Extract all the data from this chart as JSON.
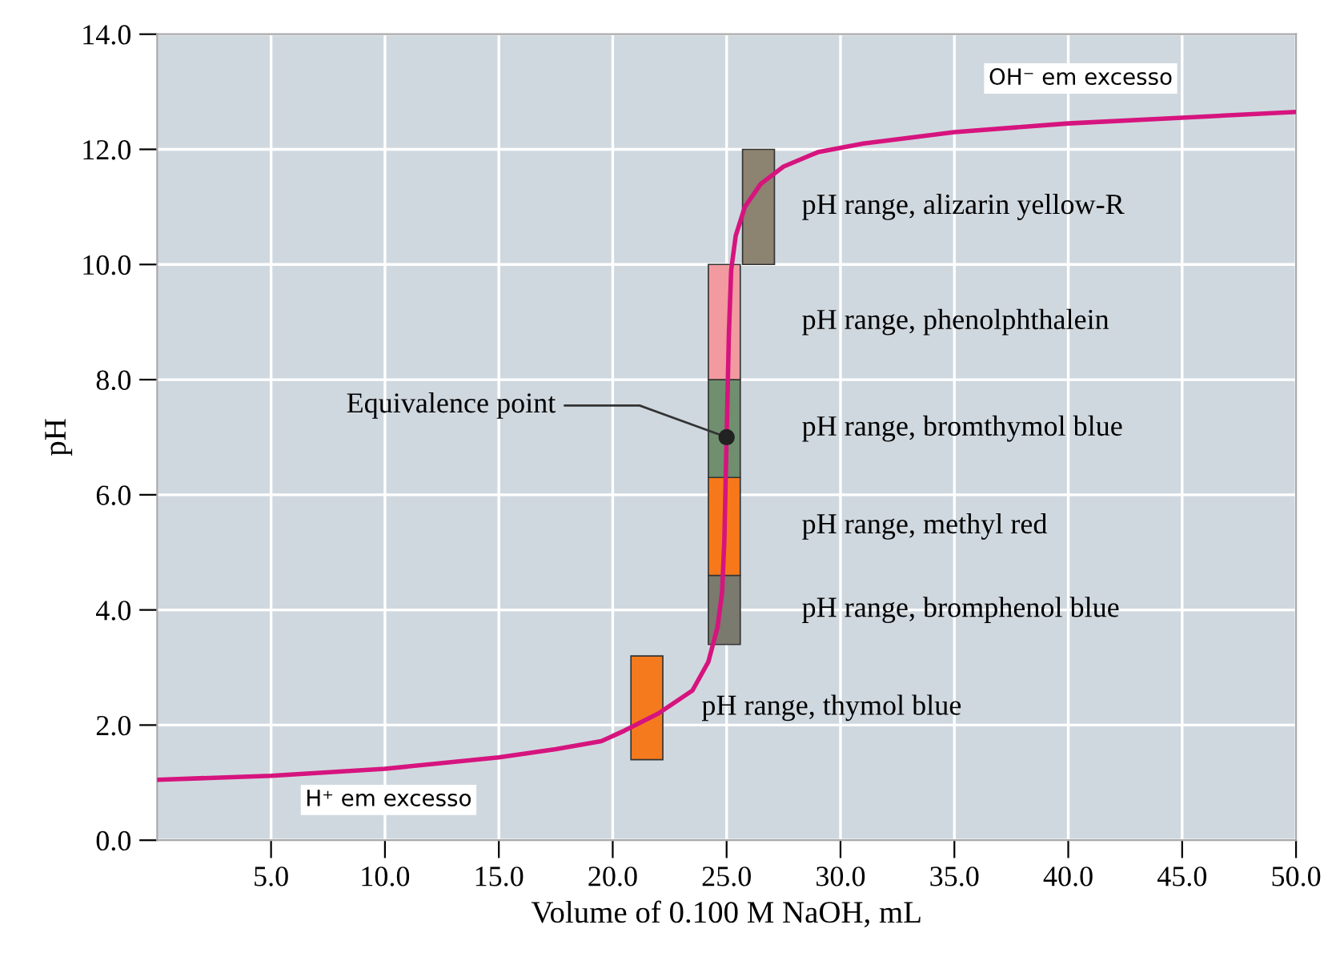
{
  "chart_data": {
    "type": "line",
    "xlabel": "Volume of 0.100 M NaOH, mL",
    "ylabel": "pH",
    "xlim": [
      0,
      50
    ],
    "xticks": [
      {
        "value": 5,
        "label": "5.0"
      },
      {
        "value": 10,
        "label": "10.0"
      },
      {
        "value": 15,
        "label": "15.0"
      },
      {
        "value": 20,
        "label": "20.0"
      },
      {
        "value": 25,
        "label": "25.0"
      },
      {
        "value": 30,
        "label": "30.0"
      },
      {
        "value": 35,
        "label": "35.0"
      },
      {
        "value": 40,
        "label": "40.0"
      },
      {
        "value": 45,
        "label": "45.0"
      },
      {
        "value": 50,
        "label": "50.0"
      }
    ],
    "ylim": [
      0,
      14
    ],
    "yticks": [
      {
        "value": 0,
        "label": "0.0"
      },
      {
        "value": 2,
        "label": "2.0"
      },
      {
        "value": 4,
        "label": "4.0"
      },
      {
        "value": 6,
        "label": "6.0"
      },
      {
        "value": 8,
        "label": "8.0"
      },
      {
        "value": 10,
        "label": "10.0"
      },
      {
        "value": 12,
        "label": "12.0"
      },
      {
        "value": 14,
        "label": "14.0"
      }
    ],
    "grid": true,
    "series": [
      {
        "type": "bar",
        "name": "pH range, thymol blue",
        "color": "#f57a1e",
        "x": [
          21.5
        ],
        "base": [
          1.4
        ],
        "values": [
          1.8
        ]
      },
      {
        "type": "bar",
        "name": "pH range, bromphenol blue",
        "color": "#7a7a6e",
        "x": [
          24.9
        ],
        "base": [
          3.4
        ],
        "values": [
          1.2
        ]
      },
      {
        "type": "bar",
        "name": "pH range, methyl red",
        "color": "#f7781a",
        "x": [
          24.9
        ],
        "base": [
          4.6
        ],
        "values": [
          1.7
        ]
      },
      {
        "type": "bar",
        "name": "pH range, bromthymol blue",
        "color": "#6f8f6e",
        "x": [
          24.9
        ],
        "base": [
          6.3
        ],
        "values": [
          1.7
        ]
      },
      {
        "type": "bar",
        "name": "pH range, phenolphthalein",
        "color": "#f29aa0",
        "x": [
          24.9
        ],
        "base": [
          8.0
        ],
        "values": [
          2.0
        ]
      },
      {
        "type": "bar",
        "name": "pH range, alizarin yellow-R",
        "color": "#8c8370",
        "x": [
          26.4
        ],
        "base": [
          10.0
        ],
        "values": [
          2.0
        ]
      },
      {
        "color": "#d6147e",
        "x": [
          0,
          5,
          10,
          15,
          17.5,
          19.5,
          20.5,
          22,
          23.5,
          24.2,
          24.6,
          24.8,
          24.9,
          25.0,
          25.1,
          25.2,
          25.4,
          25.8,
          26.5,
          27.5,
          29,
          31,
          35,
          40,
          45,
          50
        ],
        "values": [
          1.05,
          1.12,
          1.24,
          1.44,
          1.58,
          1.72,
          1.9,
          2.2,
          2.6,
          3.1,
          3.7,
          4.3,
          5.2,
          7.0,
          8.8,
          9.9,
          10.5,
          11.0,
          11.4,
          11.7,
          11.95,
          12.1,
          12.3,
          12.45,
          12.55,
          12.65
        ]
      },
      {
        "type": "scatter",
        "color": "#222222",
        "marker": "circle",
        "x": [
          25.0
        ],
        "values": [
          7.0
        ]
      }
    ],
    "annotations": [
      {
        "text": "Equivalence point",
        "x": 25.0,
        "y": 7.0
      },
      "H⁺ em excesso",
      "OH⁻ em excesso"
    ]
  }
}
